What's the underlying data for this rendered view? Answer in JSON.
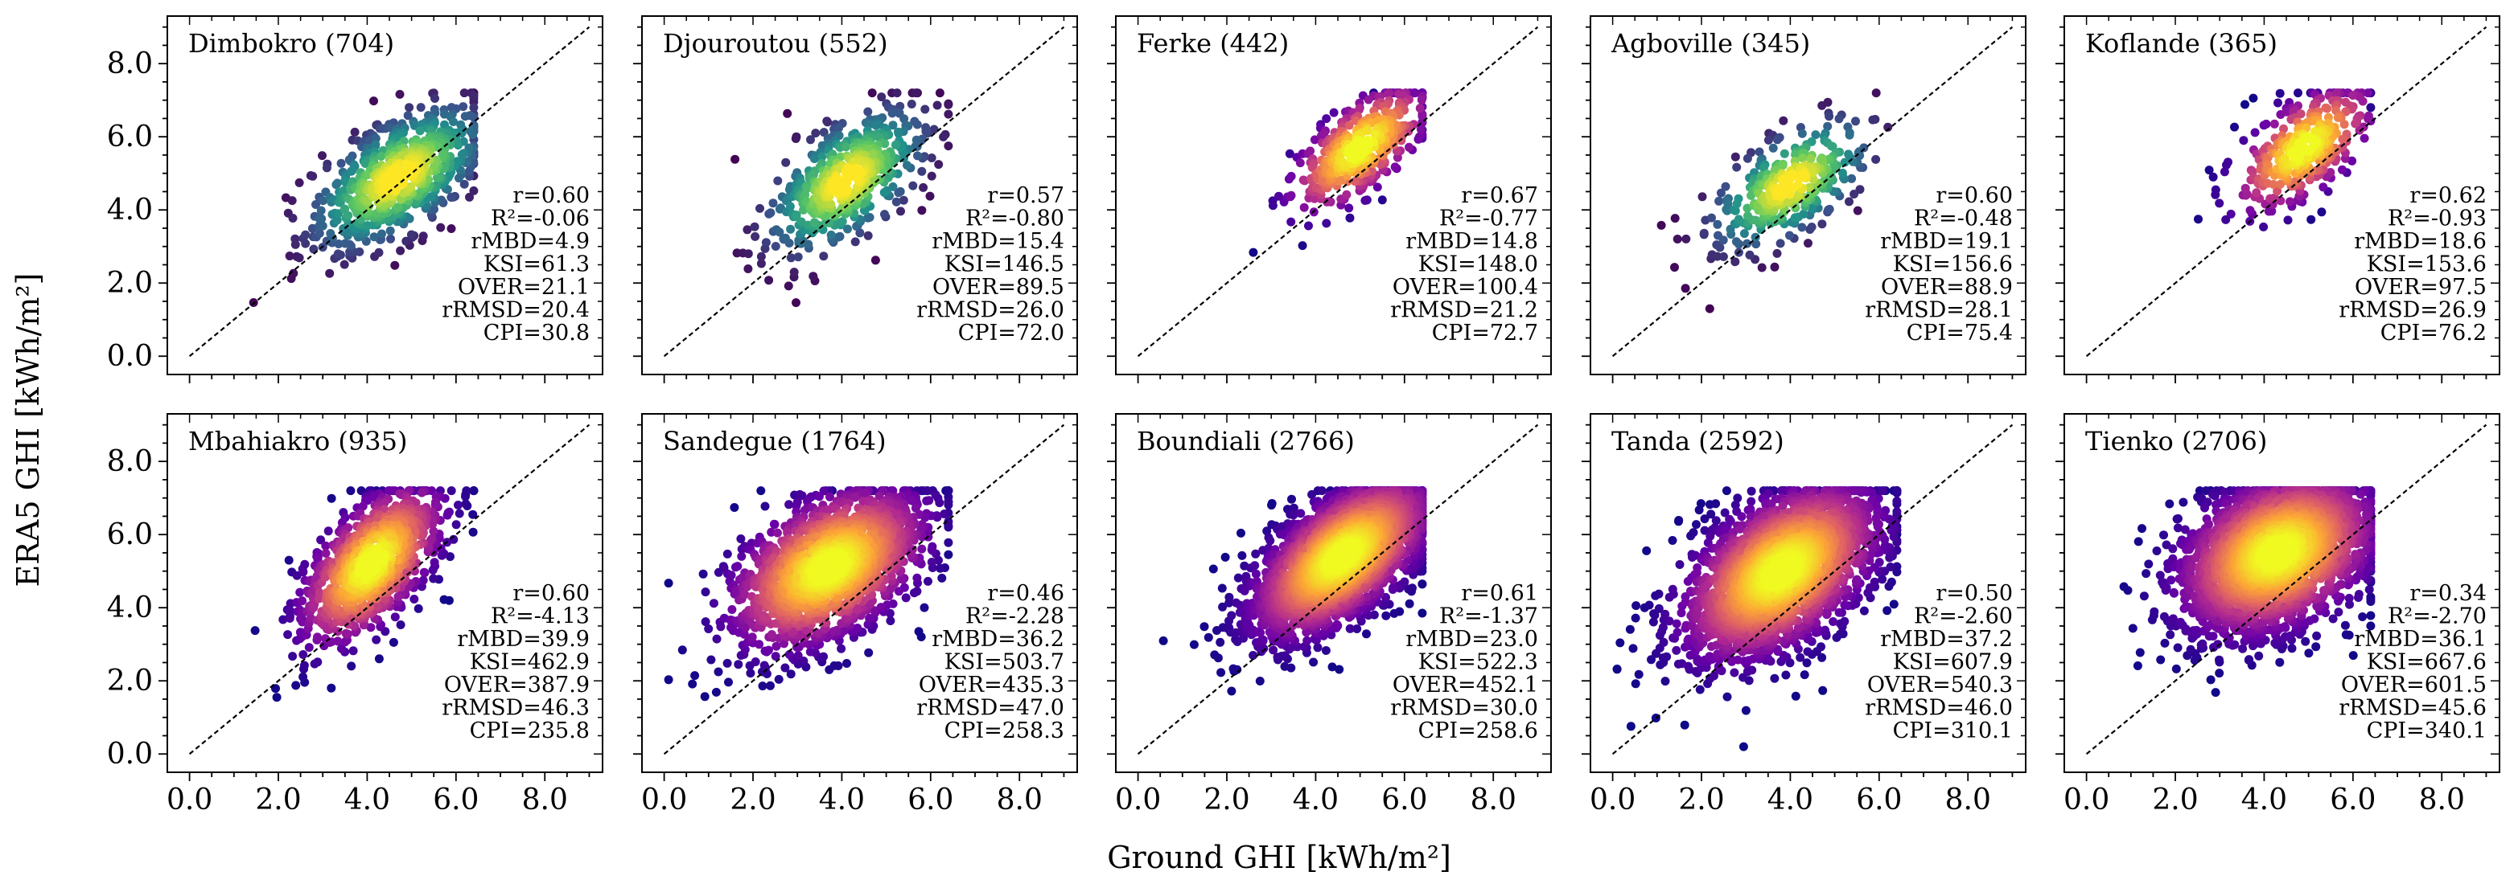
{
  "figure": {
    "xlabel": "Ground GHI [kWh/m²]",
    "ylabel": "ERA5 GHI [kWh/m²]",
    "colormap_blue": [
      "#440154",
      "#3b528b",
      "#21918c",
      "#5ec962",
      "#fde725"
    ],
    "colormap_plasma": [
      "#0d0887",
      "#6a00a8",
      "#b12a90",
      "#e16462",
      "#fca636",
      "#f0f921"
    ],
    "ref_line_color": "#000000"
  },
  "chart_data": [
    {
      "type": "scatter",
      "title": "Dimbokro (704)",
      "xlim": [
        -0.5,
        9.3
      ],
      "ylim": [
        -0.5,
        9.3
      ],
      "xticks": [
        "0.0",
        "2.0",
        "4.0",
        "6.0",
        "8.0"
      ],
      "yticks": [
        "0.0",
        "2.0",
        "4.0",
        "6.0",
        "8.0"
      ],
      "cmap": "viridis",
      "cloud": {
        "cx": 4.7,
        "cy": 4.9,
        "sx": 1.0,
        "sy": 1.0,
        "rho": 0.6,
        "n": 704
      },
      "stats": [
        "r=0.60",
        "R²=-0.06",
        "rMBD=4.9",
        "KSI=61.3",
        "OVER=21.1",
        "rRMSD=20.4",
        "CPI=30.8"
      ]
    },
    {
      "type": "scatter",
      "title": "Djouroutou (552)",
      "xlim": [
        -0.5,
        9.3
      ],
      "ylim": [
        -0.5,
        9.3
      ],
      "xticks": [
        "0.0",
        "2.0",
        "4.0",
        "6.0",
        "8.0"
      ],
      "yticks": [
        "0.0",
        "2.0",
        "4.0",
        "6.0",
        "8.0"
      ],
      "cmap": "viridis",
      "cloud": {
        "cx": 4.1,
        "cy": 4.8,
        "sx": 0.9,
        "sy": 1.0,
        "rho": 0.57,
        "n": 552
      },
      "stats": [
        "r=0.57",
        "R²=-0.80",
        "rMBD=15.4",
        "KSI=146.5",
        "OVER=89.5",
        "rRMSD=26.0",
        "CPI=72.0"
      ]
    },
    {
      "type": "scatter",
      "title": "Ferke (442)",
      "xlim": [
        -0.5,
        9.3
      ],
      "ylim": [
        -0.5,
        9.3
      ],
      "xticks": [
        "0.0",
        "2.0",
        "4.0",
        "6.0",
        "8.0"
      ],
      "yticks": [
        "0.0",
        "2.0",
        "4.0",
        "6.0",
        "8.0"
      ],
      "cmap": "plasma",
      "cloud": {
        "cx": 5.0,
        "cy": 5.7,
        "sx": 0.8,
        "sy": 0.9,
        "rho": 0.67,
        "n": 442
      },
      "stats": [
        "r=0.67",
        "R²=-0.77",
        "rMBD=14.8",
        "KSI=148.0",
        "OVER=100.4",
        "rRMSD=21.2",
        "CPI=72.7"
      ]
    },
    {
      "type": "scatter",
      "title": "Agboville (345)",
      "xlim": [
        -0.5,
        9.3
      ],
      "ylim": [
        -0.5,
        9.3
      ],
      "xticks": [
        "0.0",
        "2.0",
        "4.0",
        "6.0",
        "8.0"
      ],
      "yticks": [
        "0.0",
        "2.0",
        "4.0",
        "6.0",
        "8.0"
      ],
      "cmap": "viridis",
      "cloud": {
        "cx": 4.0,
        "cy": 4.7,
        "sx": 0.9,
        "sy": 0.9,
        "rho": 0.6,
        "n": 345
      },
      "stats": [
        "r=0.60",
        "R²=-0.48",
        "rMBD=19.1",
        "KSI=156.6",
        "OVER=88.9",
        "rRMSD=28.1",
        "CPI=75.4"
      ]
    },
    {
      "type": "scatter",
      "title": "Koflande (365)",
      "xlim": [
        -0.5,
        9.3
      ],
      "ylim": [
        -0.5,
        9.3
      ],
      "xticks": [
        "0.0",
        "2.0",
        "4.0",
        "6.0",
        "8.0"
      ],
      "yticks": [
        "0.0",
        "2.0",
        "4.0",
        "6.0",
        "8.0"
      ],
      "cmap": "plasma",
      "cloud": {
        "cx": 4.9,
        "cy": 5.7,
        "sx": 0.8,
        "sy": 0.9,
        "rho": 0.62,
        "n": 365
      },
      "stats": [
        "r=0.62",
        "R²=-0.93",
        "rMBD=18.6",
        "KSI=153.6",
        "OVER=97.5",
        "rRMSD=26.9",
        "CPI=76.2"
      ]
    },
    {
      "type": "scatter",
      "title": "Mbahiakro (935)",
      "xlim": [
        -0.5,
        9.3
      ],
      "ylim": [
        -0.5,
        9.3
      ],
      "xticks": [
        "0.0",
        "2.0",
        "4.0",
        "6.0",
        "8.0"
      ],
      "yticks": [
        "0.0",
        "2.0",
        "4.0",
        "6.0",
        "8.0"
      ],
      "cmap": "plasma",
      "cloud": {
        "cx": 4.1,
        "cy": 5.2,
        "sx": 0.8,
        "sy": 1.1,
        "rho": 0.6,
        "n": 935
      },
      "stats": [
        "r=0.60",
        "R²=-4.13",
        "rMBD=39.9",
        "KSI=462.9",
        "OVER=387.9",
        "rRMSD=46.3",
        "CPI=235.8"
      ]
    },
    {
      "type": "scatter",
      "title": "Sandegue (1764)",
      "xlim": [
        -0.5,
        9.3
      ],
      "ylim": [
        -0.5,
        9.3
      ],
      "xticks": [
        "0.0",
        "2.0",
        "4.0",
        "6.0",
        "8.0"
      ],
      "yticks": [
        "0.0",
        "2.0",
        "4.0",
        "6.0",
        "8.0"
      ],
      "cmap": "plasma",
      "cloud": {
        "cx": 3.7,
        "cy": 5.1,
        "sx": 1.1,
        "sy": 1.1,
        "rho": 0.46,
        "n": 1764
      },
      "stats": [
        "r=0.46",
        "R²=-2.28",
        "rMBD=36.2",
        "KSI=503.7",
        "OVER=435.3",
        "rRMSD=47.0",
        "CPI=258.3"
      ]
    },
    {
      "type": "scatter",
      "title": "Boundiali (2766)",
      "xlim": [
        -0.5,
        9.3
      ],
      "ylim": [
        -0.5,
        9.3
      ],
      "xticks": [
        "0.0",
        "2.0",
        "4.0",
        "6.0",
        "8.0"
      ],
      "yticks": [
        "0.0",
        "2.0",
        "4.0",
        "6.0",
        "8.0"
      ],
      "cmap": "plasma",
      "cloud": {
        "cx": 4.6,
        "cy": 5.4,
        "sx": 1.0,
        "sy": 1.1,
        "rho": 0.61,
        "n": 2766
      },
      "stats": [
        "r=0.61",
        "R²=-1.37",
        "rMBD=23.0",
        "KSI=522.3",
        "OVER=452.1",
        "rRMSD=30.0",
        "CPI=258.6"
      ]
    },
    {
      "type": "scatter",
      "title": "Tanda (2592)",
      "xlim": [
        -0.5,
        9.3
      ],
      "ylim": [
        -0.5,
        9.3
      ],
      "xticks": [
        "0.0",
        "2.0",
        "4.0",
        "6.0",
        "8.0"
      ],
      "yticks": [
        "0.0",
        "2.0",
        "4.0",
        "6.0",
        "8.0"
      ],
      "cmap": "plasma",
      "cloud": {
        "cx": 3.8,
        "cy": 5.0,
        "sx": 1.1,
        "sy": 1.2,
        "rho": 0.5,
        "n": 2592
      },
      "stats": [
        "r=0.50",
        "R²=-2.60",
        "rMBD=37.2",
        "KSI=607.9",
        "OVER=540.3",
        "rRMSD=46.0",
        "CPI=310.1"
      ]
    },
    {
      "type": "scatter",
      "title": "Tienko (2706)",
      "xlim": [
        -0.5,
        9.3
      ],
      "ylim": [
        -0.5,
        9.3
      ],
      "xticks": [
        "0.0",
        "2.0",
        "4.0",
        "6.0",
        "8.0"
      ],
      "yticks": [
        "0.0",
        "2.0",
        "4.0",
        "6.0",
        "8.0"
      ],
      "cmap": "plasma",
      "cloud": {
        "cx": 4.3,
        "cy": 5.5,
        "sx": 1.1,
        "sy": 1.1,
        "rho": 0.34,
        "n": 2706
      },
      "stats": [
        "r=0.34",
        "R²=-2.70",
        "rMBD=36.1",
        "KSI=667.6",
        "OVER=601.5",
        "rRMSD=45.6",
        "CPI=340.1"
      ]
    }
  ]
}
